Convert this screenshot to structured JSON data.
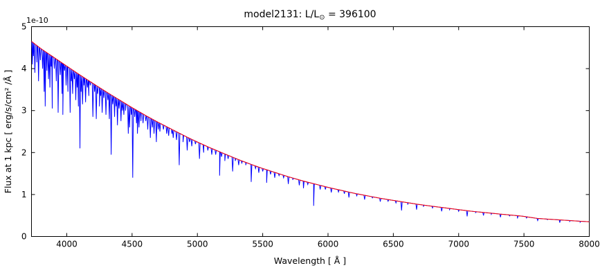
{
  "figure": {
    "title": {
      "pre": "model2131: L/L",
      "sub": "⊙",
      "post": " = 396100"
    },
    "offset_text": "1e-10"
  },
  "chart_data": {
    "type": "line",
    "title": "model2131: L/L⊙ = 396100",
    "xlabel": "Wavelength [ Å ]",
    "ylabel": "Flux at 1 kpc [ erg/s/cm² /Å ]",
    "y_scale_factor": "1e-10",
    "xlim": [
      3730,
      8000
    ],
    "ylim": [
      0,
      5
    ],
    "xticks": [
      4000,
      4500,
      5000,
      5500,
      6000,
      6500,
      7000,
      7500,
      8000
    ],
    "yticks": [
      0,
      1,
      2,
      3,
      4,
      5
    ],
    "grid": false,
    "legend": null,
    "frame_color": "#000000",
    "series": [
      {
        "name": "spectrum",
        "color": "#0000ff",
        "description": "model spectrum with absorption lines"
      },
      {
        "name": "continuum",
        "color": "#ff0000",
        "description": "smooth continuum fit"
      }
    ],
    "continuum": {
      "wavelengths": [
        3730,
        3800,
        3900,
        4000,
        4100,
        4200,
        4300,
        4400,
        4500,
        4600,
        4700,
        4800,
        4900,
        5000,
        5100,
        5200,
        5300,
        5400,
        5500,
        5600,
        5700,
        5800,
        5900,
        6000,
        6100,
        6200,
        6300,
        6400,
        6500,
        6600,
        6700,
        6800,
        6900,
        7000,
        7100,
        7200,
        7300,
        7400,
        7500,
        7600,
        7700,
        7800,
        7900,
        8000
      ],
      "flux": [
        4.65,
        4.48,
        4.27,
        4.06,
        3.85,
        3.65,
        3.45,
        3.26,
        3.07,
        2.89,
        2.72,
        2.56,
        2.4,
        2.25,
        2.11,
        1.98,
        1.85,
        1.73,
        1.62,
        1.52,
        1.42,
        1.33,
        1.25,
        1.17,
        1.1,
        1.03,
        0.97,
        0.91,
        0.86,
        0.81,
        0.76,
        0.72,
        0.68,
        0.64,
        0.6,
        0.57,
        0.54,
        0.51,
        0.48,
        0.43,
        0.41,
        0.39,
        0.37,
        0.35
      ]
    },
    "absorption_lines_format": [
      "wavelength_angstrom",
      "flux_min_1e-10"
    ],
    "absorption_lines": [
      [
        3737,
        4.1
      ],
      [
        3745,
        4.3
      ],
      [
        3756,
        3.9
      ],
      [
        3771,
        4.15
      ],
      [
        3784,
        3.7
      ],
      [
        3798,
        4.2
      ],
      [
        3815,
        4.0
      ],
      [
        3827,
        3.45
      ],
      [
        3835,
        3.1
      ],
      [
        3848,
        3.95
      ],
      [
        3860,
        3.75
      ],
      [
        3871,
        3.55
      ],
      [
        3880,
        4.05
      ],
      [
        3889,
        3.05
      ],
      [
        3905,
        4.0
      ],
      [
        3920,
        3.7
      ],
      [
        3934,
        2.95
      ],
      [
        3950,
        3.85
      ],
      [
        3964,
        3.4
      ],
      [
        3970,
        2.9
      ],
      [
        3983,
        3.95
      ],
      [
        3995,
        3.6
      ],
      [
        4009,
        3.45
      ],
      [
        4026,
        2.95
      ],
      [
        4035,
        3.7
      ],
      [
        4045,
        3.4
      ],
      [
        4058,
        3.75
      ],
      [
        4069,
        3.25
      ],
      [
        4080,
        3.55
      ],
      [
        4089,
        3.1
      ],
      [
        4101,
        2.1
      ],
      [
        4110,
        3.45
      ],
      [
        4121,
        3.15
      ],
      [
        4132,
        3.6
      ],
      [
        4144,
        3.2
      ],
      [
        4158,
        3.55
      ],
      [
        4169,
        3.35
      ],
      [
        4180,
        3.6
      ],
      [
        4200,
        2.85
      ],
      [
        4213,
        3.45
      ],
      [
        4226,
        2.8
      ],
      [
        4236,
        3.4
      ],
      [
        4250,
        3.1
      ],
      [
        4260,
        3.35
      ],
      [
        4271,
        2.95
      ],
      [
        4284,
        3.3
      ],
      [
        4300,
        2.9
      ],
      [
        4315,
        3.25
      ],
      [
        4326,
        2.8
      ],
      [
        4340,
        1.95
      ],
      [
        4352,
        3.15
      ],
      [
        4366,
        2.85
      ],
      [
        4378,
        3.1
      ],
      [
        4388,
        2.65
      ],
      [
        4400,
        3.05
      ],
      [
        4415,
        2.75
      ],
      [
        4426,
        3.0
      ],
      [
        4437,
        2.9
      ],
      [
        4450,
        3.0
      ],
      [
        4471,
        2.45
      ],
      [
        4481,
        2.6
      ],
      [
        4494,
        2.9
      ],
      [
        4505,
        1.4
      ],
      [
        4520,
        2.85
      ],
      [
        4534,
        2.7
      ],
      [
        4541,
        2.45
      ],
      [
        4553,
        2.6
      ],
      [
        4568,
        2.75
      ],
      [
        4584,
        2.7
      ],
      [
        4605,
        2.75
      ],
      [
        4620,
        2.55
      ],
      [
        4640,
        2.35
      ],
      [
        4655,
        2.6
      ],
      [
        4668,
        2.45
      ],
      [
        4686,
        2.25
      ],
      [
        4700,
        2.55
      ],
      [
        4713,
        2.5
      ],
      [
        4740,
        2.55
      ],
      [
        4765,
        2.45
      ],
      [
        4780,
        2.4
      ],
      [
        4805,
        2.45
      ],
      [
        4815,
        2.35
      ],
      [
        4840,
        2.3
      ],
      [
        4861,
        1.7
      ],
      [
        4890,
        2.25
      ],
      [
        4922,
        2.05
      ],
      [
        4940,
        2.25
      ],
      [
        4957,
        2.15
      ],
      [
        4985,
        2.2
      ],
      [
        5016,
        1.85
      ],
      [
        5048,
        2.0
      ],
      [
        5080,
        2.05
      ],
      [
        5110,
        1.95
      ],
      [
        5140,
        1.95
      ],
      [
        5170,
        1.45
      ],
      [
        5185,
        1.9
      ],
      [
        5210,
        1.8
      ],
      [
        5235,
        1.85
      ],
      [
        5270,
        1.55
      ],
      [
        5290,
        1.8
      ],
      [
        5316,
        1.7
      ],
      [
        5340,
        1.75
      ],
      [
        5370,
        1.7
      ],
      [
        5412,
        1.3
      ],
      [
        5445,
        1.62
      ],
      [
        5470,
        1.52
      ],
      [
        5500,
        1.55
      ],
      [
        5530,
        1.28
      ],
      [
        5560,
        1.48
      ],
      [
        5592,
        1.4
      ],
      [
        5625,
        1.45
      ],
      [
        5660,
        1.4
      ],
      [
        5696,
        1.25
      ],
      [
        5730,
        1.35
      ],
      [
        5780,
        1.22
      ],
      [
        5812,
        1.15
      ],
      [
        5845,
        1.24
      ],
      [
        5890,
        0.73
      ],
      [
        5940,
        1.12
      ],
      [
        5980,
        1.12
      ],
      [
        6025,
        1.05
      ],
      [
        6080,
        1.06
      ],
      [
        6125,
        1.02
      ],
      [
        6160,
        0.93
      ],
      [
        6220,
        0.97
      ],
      [
        6280,
        0.88
      ],
      [
        6340,
        0.92
      ],
      [
        6400,
        0.83
      ],
      [
        6460,
        0.84
      ],
      [
        6520,
        0.8
      ],
      [
        6563,
        0.62
      ],
      [
        6610,
        0.76
      ],
      [
        6678,
        0.64
      ],
      [
        6730,
        0.71
      ],
      [
        6800,
        0.68
      ],
      [
        6870,
        0.6
      ],
      [
        6930,
        0.64
      ],
      [
        7000,
        0.6
      ],
      [
        7065,
        0.48
      ],
      [
        7130,
        0.57
      ],
      [
        7190,
        0.5
      ],
      [
        7250,
        0.53
      ],
      [
        7320,
        0.46
      ],
      [
        7390,
        0.49
      ],
      [
        7450,
        0.43
      ],
      [
        7520,
        0.44
      ],
      [
        7605,
        0.38
      ],
      [
        7680,
        0.4
      ],
      [
        7774,
        0.33
      ],
      [
        7850,
        0.36
      ],
      [
        7930,
        0.34
      ]
    ]
  }
}
